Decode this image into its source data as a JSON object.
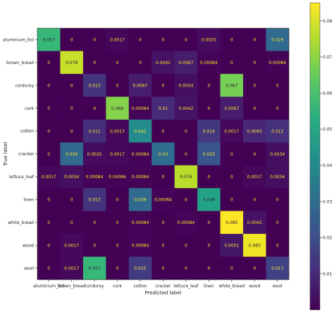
{
  "chart_data": {
    "type": "heatmap",
    "xlabel": "Predicted label",
    "ylabel": "True label",
    "labels": [
      "aluminium_foil",
      "brown_bread",
      "corduroy",
      "cork",
      "cotton",
      "cracker",
      "lettuce_leaf",
      "linen",
      "white_bread",
      "wood",
      "wool"
    ],
    "matrix": [
      [
        0.057,
        0,
        0,
        0.0017,
        0,
        0,
        0,
        0.0025,
        0,
        0,
        0.029
      ],
      [
        0,
        0.078,
        0,
        0,
        0,
        0.0042,
        0.0067,
        0.00084,
        0,
        0,
        0.00084
      ],
      [
        0,
        0,
        0.013,
        0,
        0.0067,
        0,
        0.0034,
        0,
        0.067,
        0,
        0
      ],
      [
        0,
        0,
        0,
        0.069,
        0.00084,
        0.01,
        0.0042,
        0,
        0.0067,
        0,
        0
      ],
      [
        0,
        0,
        0.011,
        0.0017,
        0.041,
        0,
        0,
        0.014,
        0.0017,
        0.0093,
        0.012
      ],
      [
        0,
        0.029,
        0.0025,
        0.0017,
        0.00084,
        0.03,
        0,
        0.023,
        0,
        0,
        0.0034
      ],
      [
        0.0017,
        0.0034,
        0.00084,
        0.00084,
        0.00084,
        0,
        0.076,
        0,
        0,
        0.0017,
        0.0034
      ],
      [
        0,
        0,
        0.013,
        0,
        0.029,
        0.00084,
        0,
        0.049,
        0,
        0,
        0
      ],
      [
        0,
        0,
        0,
        0,
        0.00084,
        0,
        0.00084,
        0,
        0.085,
        0.0042,
        0
      ],
      [
        0,
        0.0017,
        0,
        0,
        0.00084,
        0,
        0,
        0,
        0.0051,
        0.083,
        0
      ],
      [
        0,
        0.0017,
        0.057,
        0,
        0.015,
        0,
        0,
        0,
        0,
        0,
        0.017
      ]
    ],
    "colorbar": {
      "ticks": [
        0.01,
        0.02,
        0.03,
        0.04,
        0.05,
        0.06,
        0.07,
        0.08
      ],
      "range": [
        0,
        0.085
      ],
      "colormap": "viridis"
    },
    "grid": false
  }
}
